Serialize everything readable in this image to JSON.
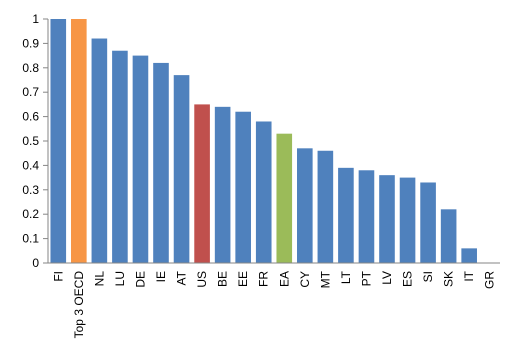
{
  "chart_data": {
    "type": "bar",
    "title": "",
    "xlabel": "",
    "ylabel": "",
    "ylim": [
      0,
      1
    ],
    "yticks": [
      "0",
      "0.1",
      "0.2",
      "0.3",
      "0.4",
      "0.5",
      "0.6",
      "0.7",
      "0.8",
      "0.9",
      "1"
    ],
    "grid": false,
    "legend": "none",
    "categories": [
      "FI",
      "Top 3 OECD",
      "NL",
      "LU",
      "DE",
      "IE",
      "AT",
      "US",
      "BE",
      "EE",
      "FR",
      "EA",
      "CY",
      "MT",
      "LT",
      "PT",
      "LV",
      "ES",
      "SI",
      "SK",
      "IT",
      "GR"
    ],
    "values": [
      1.0,
      1.0,
      0.92,
      0.87,
      0.85,
      0.82,
      0.77,
      0.65,
      0.64,
      0.62,
      0.58,
      0.53,
      0.47,
      0.46,
      0.39,
      0.38,
      0.36,
      0.35,
      0.33,
      0.22,
      0.06,
      0.0
    ],
    "colors": [
      "#4f81bd",
      "#f79646",
      "#4f81bd",
      "#4f81bd",
      "#4f81bd",
      "#4f81bd",
      "#4f81bd",
      "#c0504d",
      "#4f81bd",
      "#4f81bd",
      "#4f81bd",
      "#9bbb59",
      "#4f81bd",
      "#4f81bd",
      "#4f81bd",
      "#4f81bd",
      "#4f81bd",
      "#4f81bd",
      "#4f81bd",
      "#4f81bd",
      "#4f81bd",
      "#4f81bd"
    ]
  }
}
